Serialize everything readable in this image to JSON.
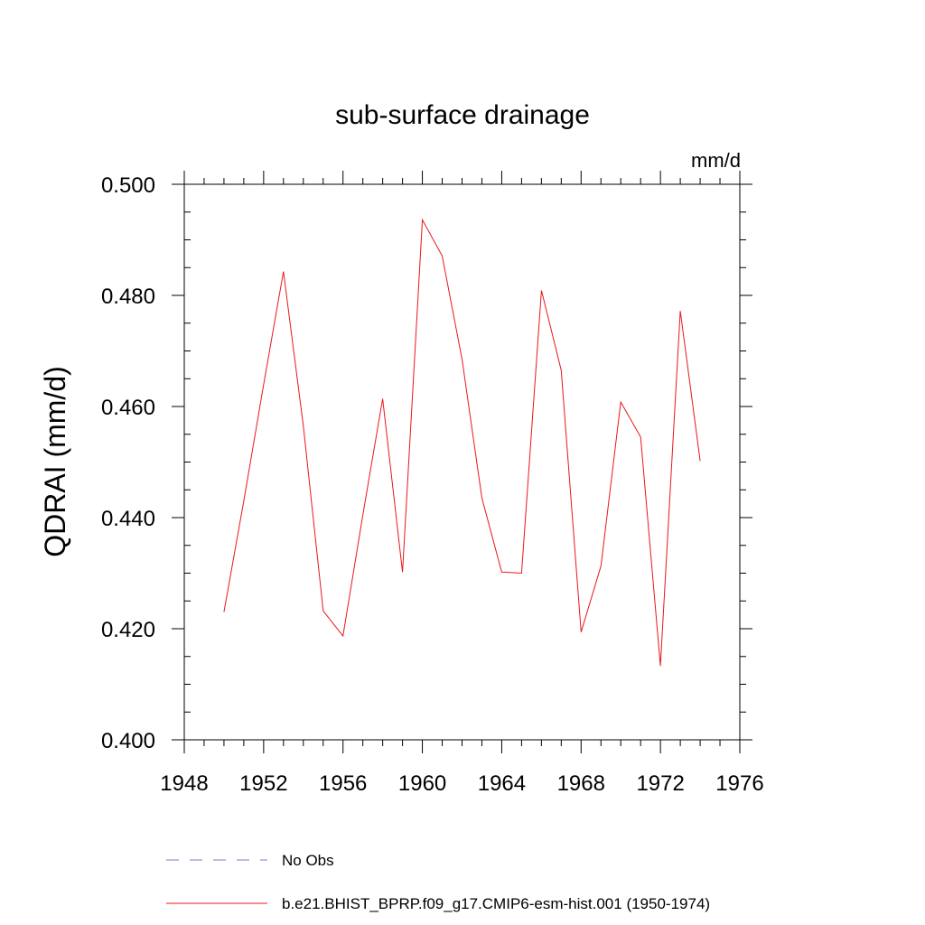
{
  "chart_data": {
    "type": "line",
    "title": "sub-surface drainage",
    "units_label": "mm/d",
    "ylabel": "QDRAI  (mm/d)",
    "xlabel": "",
    "xlim": [
      1948,
      1976
    ],
    "ylim": [
      0.4,
      0.5
    ],
    "x_major_ticks": [
      1948,
      1952,
      1956,
      1960,
      1964,
      1968,
      1972,
      1976
    ],
    "x_minor_ticks": [
      1948,
      1949,
      1950,
      1951,
      1952,
      1953,
      1954,
      1955,
      1956,
      1957,
      1958,
      1959,
      1960,
      1961,
      1962,
      1963,
      1964,
      1965,
      1966,
      1967,
      1968,
      1969,
      1970,
      1971,
      1972,
      1973,
      1974,
      1975,
      1976
    ],
    "x_tick_labels": [
      "1948",
      "1952",
      "1956",
      "1960",
      "1964",
      "1968",
      "1972",
      "1976"
    ],
    "y_major_ticks": [
      0.4,
      0.42,
      0.44,
      0.46,
      0.48,
      0.5
    ],
    "y_tick_labels": [
      "0.400",
      "0.420",
      "0.440",
      "0.460",
      "0.480",
      "0.500"
    ],
    "y_minor_step": 0.005,
    "grid": false,
    "series": [
      {
        "name": "b.e21.BHIST_BPRP.f09_g17.CMIP6-esm-hist.001 (1950-1974)",
        "color": "#e8171b",
        "style": "solid",
        "x": [
          1950,
          1951,
          1952,
          1953,
          1954,
          1955,
          1956,
          1957,
          1958,
          1959,
          1960,
          1961,
          1962,
          1963,
          1964,
          1965,
          1966,
          1967,
          1968,
          1969,
          1970,
          1971,
          1972,
          1973,
          1974
        ],
        "values": [
          0.423,
          0.443,
          0.464,
          0.4843,
          0.4565,
          0.4232,
          0.4187,
          0.4405,
          0.4614,
          0.4302,
          0.4936,
          0.4871,
          0.4685,
          0.4435,
          0.4302,
          0.43,
          0.4809,
          0.4665,
          0.4194,
          0.4313,
          0.4608,
          0.4545,
          0.4133,
          0.4772,
          0.4502
        ]
      }
    ],
    "legend": {
      "placement": "bottom",
      "entries": [
        {
          "label": "No Obs",
          "color": "#7b7bc8",
          "style": "dashed"
        },
        {
          "label": "b.e21.BHIST_BPRP.f09_g17.CMIP6-esm-hist.001 (1950-1974)",
          "color": "#e8171b",
          "style": "solid"
        }
      ]
    }
  }
}
